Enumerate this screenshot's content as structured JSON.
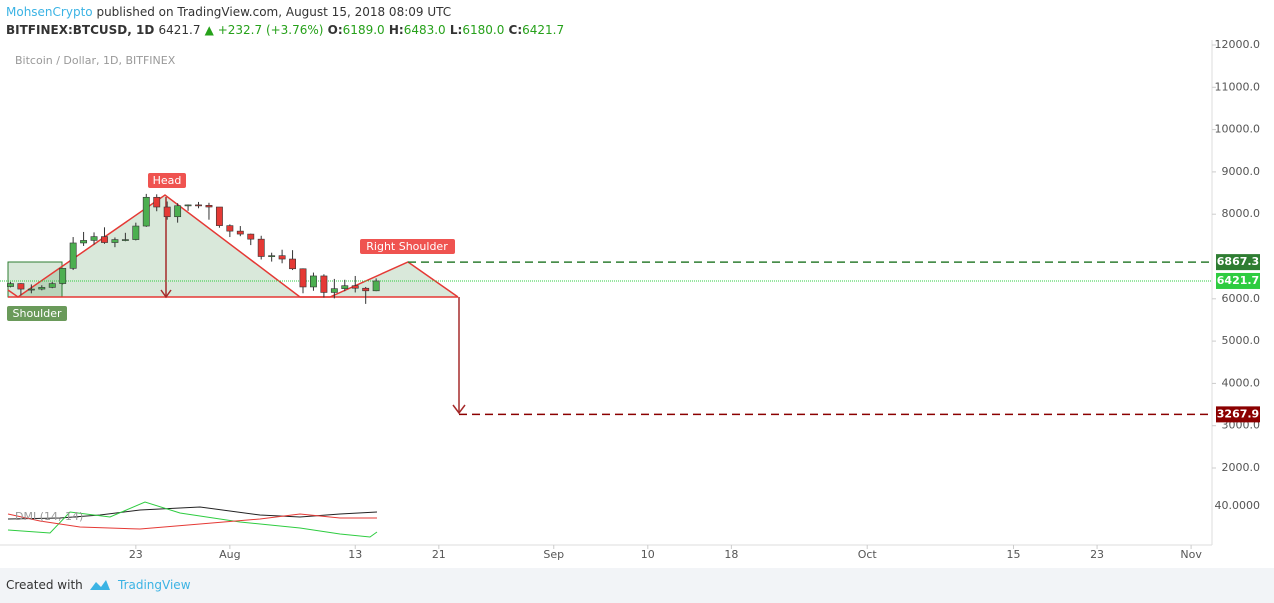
{
  "header": {
    "author": "MohsenCrypto",
    "published": "published on TradingView.com, August 15, 2018 08:09 UTC",
    "symbol": "BITFINEX:BTCUSD, 1D",
    "last": "6421.7",
    "change": "▲ +232.7 (+3.76%)",
    "ohlc": [
      {
        "label": "O:",
        "value": "6189.0"
      },
      {
        "label": "H:",
        "value": "6483.0"
      },
      {
        "label": "L:",
        "value": "6180.0"
      },
      {
        "label": "C:",
        "value": "6421.7"
      }
    ]
  },
  "chart_data": {
    "type": "candlestick",
    "title": "Bitcoin / Dollar, 1D, BITFINEX",
    "x": [
      "07-11",
      "07-12",
      "07-13",
      "07-14",
      "07-15",
      "07-16",
      "07-17",
      "07-18",
      "07-19",
      "07-20",
      "07-21",
      "07-22",
      "07-23",
      "07-24",
      "07-25",
      "07-26",
      "07-27",
      "07-28",
      "07-29",
      "07-30",
      "07-31",
      "08-01",
      "08-02",
      "08-03",
      "08-04",
      "08-05",
      "08-06",
      "08-07",
      "08-08",
      "08-09",
      "08-10",
      "08-11",
      "08-12",
      "08-13",
      "08-14",
      "08-15"
    ],
    "open": [
      6290,
      6360,
      6230,
      6230,
      6270,
      6360,
      6720,
      7320,
      7380,
      7470,
      7330,
      7400,
      7400,
      7720,
      8400,
      8170,
      7940,
      8200,
      8220,
      8210,
      8170,
      7730,
      7600,
      7530,
      7410,
      7000,
      7020,
      6940,
      6710,
      6280,
      6540,
      6150,
      6240,
      6310,
      6250,
      6189
    ],
    "high": [
      6400,
      6370,
      6340,
      6320,
      6400,
      6700,
      7460,
      7580,
      7570,
      7690,
      7450,
      7560,
      7800,
      8480,
      8470,
      8300,
      8260,
      8230,
      8290,
      8270,
      8170,
      7760,
      7720,
      7540,
      7490,
      7090,
      7160,
      7150,
      6720,
      6620,
      6580,
      6470,
      6450,
      6540,
      6280,
      6483
    ],
    "low": [
      6270,
      6080,
      6130,
      6200,
      6250,
      6340,
      6680,
      7250,
      7280,
      7300,
      7220,
      7360,
      7380,
      7700,
      8070,
      7870,
      7800,
      8080,
      8140,
      7870,
      7680,
      7460,
      7480,
      7270,
      6930,
      6880,
      6840,
      6680,
      6130,
      6190,
      6030,
      6010,
      6180,
      6150,
      5880,
      6180
    ],
    "close": [
      6360,
      6230,
      6230,
      6270,
      6360,
      6720,
      7320,
      7380,
      7470,
      7330,
      7400,
      7400,
      7720,
      8400,
      8170,
      7940,
      8200,
      8220,
      8210,
      8170,
      7730,
      7600,
      7530,
      7410,
      7000,
      7020,
      6940,
      6710,
      6280,
      6540,
      6150,
      6240,
      6310,
      6250,
      6189,
      6421.7
    ],
    "up_color": "#4caf50",
    "down_color": "#e53935",
    "xlim": [
      "07-10",
      "11-03"
    ],
    "xticks": [
      {
        "value": "07-23",
        "label": "23"
      },
      {
        "value": "08-01",
        "label": "Aug"
      },
      {
        "value": "08-13",
        "label": "13"
      },
      {
        "value": "08-21",
        "label": "21"
      },
      {
        "value": "09-01",
        "label": "Sep"
      },
      {
        "value": "09-10",
        "label": "10"
      },
      {
        "value": "09-18",
        "label": "18"
      },
      {
        "value": "10-01",
        "label": "Oct"
      },
      {
        "value": "10-15",
        "label": "15"
      },
      {
        "value": "10-23",
        "label": "23"
      },
      {
        "value": "11-01",
        "label": "Nov"
      }
    ],
    "ylim": [
      180,
      12118
    ],
    "yticks": [
      {
        "value": 12000,
        "label": "12000.0"
      },
      {
        "value": 11000,
        "label": "11000.0"
      },
      {
        "value": 10000,
        "label": "10000.0"
      },
      {
        "value": 9000,
        "label": "9000.0"
      },
      {
        "value": 8000,
        "label": "8000.0"
      },
      {
        "value": 6000,
        "label": "6000.0"
      },
      {
        "value": 5000,
        "label": "5000.0"
      },
      {
        "value": 4000,
        "label": "4000.0"
      },
      {
        "value": 3000,
        "label": "3000.0"
      },
      {
        "value": 2000,
        "label": "2000.0"
      }
    ],
    "levels": [
      {
        "value": 6867.3,
        "label": "6867.3",
        "color": "#2e7d32",
        "dash": "8,5"
      },
      {
        "value": 6421.7,
        "label": "6421.7",
        "color": "#2ecc40",
        "dash": "1,1"
      },
      {
        "value": 3267.9,
        "label": "3267.9",
        "color": "#8b0000",
        "dash": "8,5"
      }
    ],
    "annotations": {
      "head": "Head",
      "right_shoulder": "Right Shoulder",
      "left_shoulder": "Shoulder"
    },
    "indicator": {
      "name": "DMI (14, 14)",
      "tick": "40.0000"
    }
  },
  "footer": {
    "created": "Created with",
    "brand": "TradingView"
  }
}
